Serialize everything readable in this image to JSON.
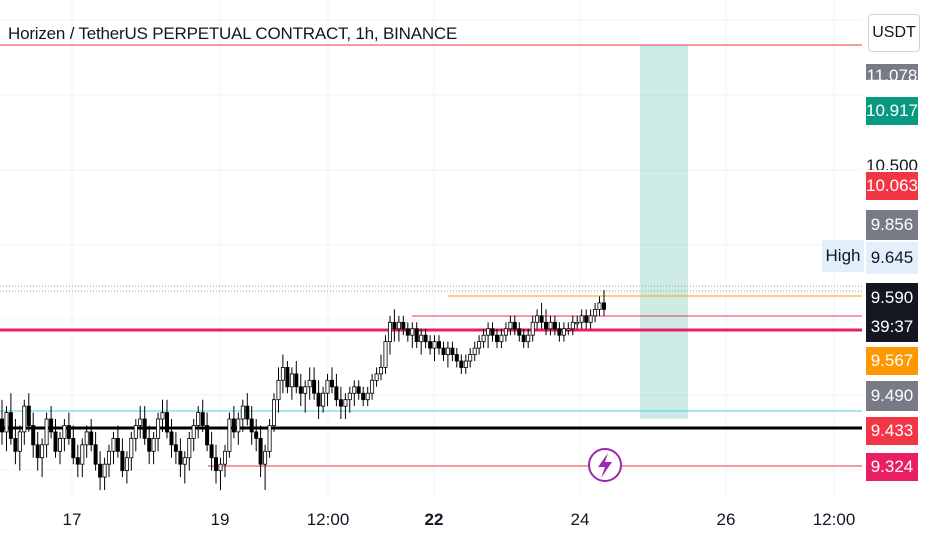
{
  "header": {
    "title": "Horizen / TetherUS PERPETUAL CONTRACT, 1h, BINANCE",
    "currency": "USDT"
  },
  "chart_data": {
    "type": "candlestick",
    "title": "Horizen / TetherUS PERPETUAL CONTRACT, 1h, BINANCE",
    "y_axis_unit": "USDT",
    "ylim": [
      9.28,
      11.1
    ],
    "x_tick_labels": [
      {
        "label": "17",
        "bold": false
      },
      {
        "label": "19",
        "bold": false
      },
      {
        "label": "12:00",
        "bold": false
      },
      {
        "label": "22",
        "bold": true
      },
      {
        "label": "24",
        "bold": false
      },
      {
        "label": "26",
        "bold": false
      },
      {
        "label": "12:00",
        "bold": false
      }
    ],
    "price_labels": [
      {
        "value": "11.078",
        "color": "#787b86",
        "price": 11.078
      },
      {
        "value": "10.917",
        "color": "#089981",
        "price": 10.917
      },
      {
        "value": "10.500",
        "color": "#787b86",
        "price": 10.5
      },
      {
        "value": "10.063",
        "color": "#f23645",
        "price": 10.063
      },
      {
        "value": "9.856",
        "color": "#787b86",
        "price": 9.856
      },
      {
        "value": "9.645",
        "color": "#ffffff",
        "price": 9.645
      },
      {
        "value": "9.590",
        "color": "#131722",
        "price": 9.59
      },
      {
        "value": "39:37",
        "color": "#131722",
        "price": 9.59
      },
      {
        "value": "9.567",
        "color": "#ff9800",
        "price": 9.567
      },
      {
        "value": "9.490",
        "color": "#787b86",
        "price": 9.49
      },
      {
        "value": "9.433",
        "color": "#f23645",
        "price": 9.433
      },
      {
        "value": "9.324",
        "color": "#f23645",
        "price": 9.324
      }
    ],
    "high_label": "High",
    "high_value": "9.645",
    "horizontal_levels": [
      {
        "price": 10.063,
        "color": "#f23645",
        "style": "thin"
      },
      {
        "price": 9.567,
        "color": "#e91e63",
        "style": "thick"
      },
      {
        "price": 9.49,
        "color": "#4dd0e1",
        "style": "thin"
      },
      {
        "price": 9.433,
        "color": "#000000",
        "style": "thick"
      },
      {
        "price": 9.324,
        "color": "#f23645",
        "style": "thin"
      }
    ],
    "position_tool": {
      "entry": 9.59,
      "target": 10.917,
      "stop": 9.567
    },
    "candles": [
      [
        9.42,
        9.45,
        9.38,
        9.4
      ],
      [
        9.4,
        9.44,
        9.37,
        9.43
      ],
      [
        9.43,
        9.46,
        9.38,
        9.39
      ],
      [
        9.39,
        9.42,
        9.35,
        9.37
      ],
      [
        9.37,
        9.41,
        9.34,
        9.4
      ],
      [
        9.4,
        9.45,
        9.38,
        9.44
      ],
      [
        9.44,
        9.46,
        9.4,
        9.41
      ],
      [
        9.41,
        9.43,
        9.36,
        9.38
      ],
      [
        9.38,
        9.4,
        9.34,
        9.36
      ],
      [
        9.36,
        9.39,
        9.33,
        9.38
      ],
      [
        9.38,
        9.43,
        9.36,
        9.42
      ],
      [
        9.42,
        9.44,
        9.39,
        9.4
      ],
      [
        9.4,
        9.42,
        9.36,
        9.37
      ],
      [
        9.37,
        9.4,
        9.35,
        9.39
      ],
      [
        9.39,
        9.42,
        9.37,
        9.41
      ],
      [
        9.41,
        9.43,
        9.38,
        9.39
      ],
      [
        9.39,
        9.41,
        9.35,
        9.36
      ],
      [
        9.36,
        9.38,
        9.33,
        9.35
      ],
      [
        9.35,
        9.39,
        9.33,
        9.38
      ],
      [
        9.38,
        9.41,
        9.36,
        9.4
      ],
      [
        9.4,
        9.42,
        9.37,
        9.38
      ],
      [
        9.38,
        9.4,
        9.34,
        9.35
      ],
      [
        9.35,
        9.37,
        9.31,
        9.33
      ],
      [
        9.33,
        9.36,
        9.31,
        9.35
      ],
      [
        9.35,
        9.38,
        9.33,
        9.37
      ],
      [
        9.37,
        9.4,
        9.35,
        9.39
      ],
      [
        9.39,
        9.41,
        9.36,
        9.37
      ],
      [
        9.37,
        9.39,
        9.33,
        9.34
      ],
      [
        9.34,
        9.37,
        9.32,
        9.36
      ],
      [
        9.36,
        9.4,
        9.34,
        9.39
      ],
      [
        9.39,
        9.42,
        9.37,
        9.41
      ],
      [
        9.41,
        9.44,
        9.39,
        9.42
      ],
      [
        9.42,
        9.44,
        9.38,
        9.39
      ],
      [
        9.39,
        9.41,
        9.35,
        9.37
      ],
      [
        9.37,
        9.4,
        9.35,
        9.39
      ],
      [
        9.39,
        9.43,
        9.37,
        9.42
      ],
      [
        9.42,
        9.45,
        9.4,
        9.43
      ],
      [
        9.43,
        9.45,
        9.39,
        9.4
      ],
      [
        9.4,
        9.42,
        9.36,
        9.38
      ],
      [
        9.38,
        9.4,
        9.35,
        9.37
      ],
      [
        9.37,
        9.39,
        9.33,
        9.35
      ],
      [
        9.35,
        9.37,
        9.32,
        9.36
      ],
      [
        9.36,
        9.4,
        9.34,
        9.39
      ],
      [
        9.39,
        9.42,
        9.37,
        9.41
      ],
      [
        9.41,
        9.44,
        9.39,
        9.43
      ],
      [
        9.43,
        9.45,
        9.4,
        9.41
      ],
      [
        9.41,
        9.43,
        9.37,
        9.38
      ],
      [
        9.38,
        9.4,
        9.34,
        9.36
      ],
      [
        9.36,
        9.38,
        9.32,
        9.34
      ],
      [
        9.34,
        9.36,
        9.31,
        9.35
      ],
      [
        9.35,
        9.38,
        9.33,
        9.37
      ],
      [
        9.37,
        9.43,
        9.36,
        9.42
      ],
      [
        9.42,
        9.44,
        9.39,
        9.4
      ],
      [
        9.4,
        9.43,
        9.38,
        9.42
      ],
      [
        9.42,
        9.45,
        9.4,
        9.44
      ],
      [
        9.44,
        9.46,
        9.41,
        9.42
      ],
      [
        9.42,
        9.44,
        9.38,
        9.4
      ],
      [
        9.4,
        9.42,
        9.37,
        9.39
      ],
      [
        9.39,
        9.41,
        9.33,
        9.35
      ],
      [
        9.35,
        9.38,
        9.31,
        9.37
      ],
      [
        9.37,
        9.42,
        9.36,
        9.41
      ],
      [
        9.41,
        9.46,
        9.4,
        9.45
      ],
      [
        9.45,
        9.5,
        9.43,
        9.48
      ],
      [
        9.48,
        9.52,
        9.46,
        9.5
      ],
      [
        9.5,
        9.51,
        9.46,
        9.47
      ],
      [
        9.47,
        9.5,
        9.45,
        9.49
      ],
      [
        9.49,
        9.51,
        9.46,
        9.47
      ],
      [
        9.47,
        9.49,
        9.44,
        9.46
      ],
      [
        9.46,
        9.48,
        9.43,
        9.47
      ],
      [
        9.47,
        9.5,
        9.45,
        9.48
      ],
      [
        9.48,
        9.5,
        9.45,
        9.46
      ],
      [
        9.46,
        9.48,
        9.42,
        9.44
      ],
      [
        9.44,
        9.47,
        9.43,
        9.46
      ],
      [
        9.46,
        9.49,
        9.44,
        9.48
      ],
      [
        9.48,
        9.5,
        9.46,
        9.47
      ],
      [
        9.47,
        9.49,
        9.44,
        9.45
      ],
      [
        9.45,
        9.47,
        9.42,
        9.44
      ],
      [
        9.44,
        9.46,
        9.42,
        9.45
      ],
      [
        9.45,
        9.47,
        9.43,
        9.46
      ],
      [
        9.46,
        9.48,
        9.44,
        9.47
      ],
      [
        9.47,
        9.48,
        9.45,
        9.46
      ],
      [
        9.46,
        9.47,
        9.44,
        9.45
      ],
      [
        9.45,
        9.47,
        9.44,
        9.46
      ],
      [
        9.46,
        9.49,
        9.45,
        9.48
      ],
      [
        9.48,
        9.5,
        9.47,
        9.49
      ],
      [
        9.49,
        9.52,
        9.48,
        9.5
      ],
      [
        9.5,
        9.55,
        9.49,
        9.54
      ],
      [
        9.54,
        9.58,
        9.52,
        9.57
      ],
      [
        9.57,
        9.59,
        9.54,
        9.56
      ],
      [
        9.56,
        9.58,
        9.54,
        9.57
      ],
      [
        9.57,
        9.58,
        9.55,
        9.56
      ],
      [
        9.56,
        9.57,
        9.54,
        9.55
      ],
      [
        9.55,
        9.57,
        9.53,
        9.56
      ],
      [
        9.56,
        9.57,
        9.53,
        9.54
      ],
      [
        9.54,
        9.56,
        9.52,
        9.55
      ],
      [
        9.55,
        9.56,
        9.53,
        9.54
      ],
      [
        9.54,
        9.55,
        9.52,
        9.53
      ],
      [
        9.53,
        9.55,
        9.51,
        9.54
      ],
      [
        9.54,
        9.55,
        9.52,
        9.53
      ],
      [
        9.53,
        9.54,
        9.51,
        9.52
      ],
      [
        9.52,
        9.54,
        9.5,
        9.53
      ],
      [
        9.53,
        9.54,
        9.51,
        9.52
      ],
      [
        9.52,
        9.53,
        9.5,
        9.51
      ],
      [
        9.51,
        9.52,
        9.49,
        9.5
      ],
      [
        9.5,
        9.52,
        9.49,
        9.51
      ],
      [
        9.51,
        9.53,
        9.5,
        9.52
      ],
      [
        9.52,
        9.54,
        9.51,
        9.53
      ],
      [
        9.53,
        9.55,
        9.52,
        9.54
      ],
      [
        9.54,
        9.56,
        9.53,
        9.55
      ],
      [
        9.55,
        9.57,
        9.53,
        9.56
      ],
      [
        9.56,
        9.57,
        9.54,
        9.55
      ],
      [
        9.55,
        9.56,
        9.53,
        9.54
      ],
      [
        9.54,
        9.56,
        9.53,
        9.55
      ],
      [
        9.55,
        9.57,
        9.54,
        9.56
      ],
      [
        9.56,
        9.58,
        9.55,
        9.57
      ],
      [
        9.57,
        9.58,
        9.55,
        9.56
      ],
      [
        9.56,
        9.57,
        9.54,
        9.55
      ],
      [
        9.55,
        9.56,
        9.53,
        9.54
      ],
      [
        9.54,
        9.56,
        9.53,
        9.55
      ],
      [
        9.55,
        9.58,
        9.54,
        9.57
      ],
      [
        9.57,
        9.59,
        9.56,
        9.58
      ],
      [
        9.58,
        9.6,
        9.56,
        9.57
      ],
      [
        9.57,
        9.59,
        9.55,
        9.56
      ],
      [
        9.56,
        9.58,
        9.55,
        9.57
      ],
      [
        9.57,
        9.58,
        9.55,
        9.56
      ],
      [
        9.56,
        9.57,
        9.54,
        9.55
      ],
      [
        9.55,
        9.57,
        9.54,
        9.56
      ],
      [
        9.56,
        9.57,
        9.55,
        9.56
      ],
      [
        9.56,
        9.58,
        9.55,
        9.57
      ],
      [
        9.57,
        9.58,
        9.56,
        9.57
      ],
      [
        9.57,
        9.59,
        9.56,
        9.58
      ],
      [
        9.58,
        9.59,
        9.56,
        9.57
      ],
      [
        9.57,
        9.59,
        9.56,
        9.58
      ],
      [
        9.58,
        9.6,
        9.57,
        9.59
      ],
      [
        9.59,
        9.61,
        9.58,
        9.6
      ],
      [
        9.6,
        9.62,
        9.58,
        9.59
      ]
    ]
  }
}
